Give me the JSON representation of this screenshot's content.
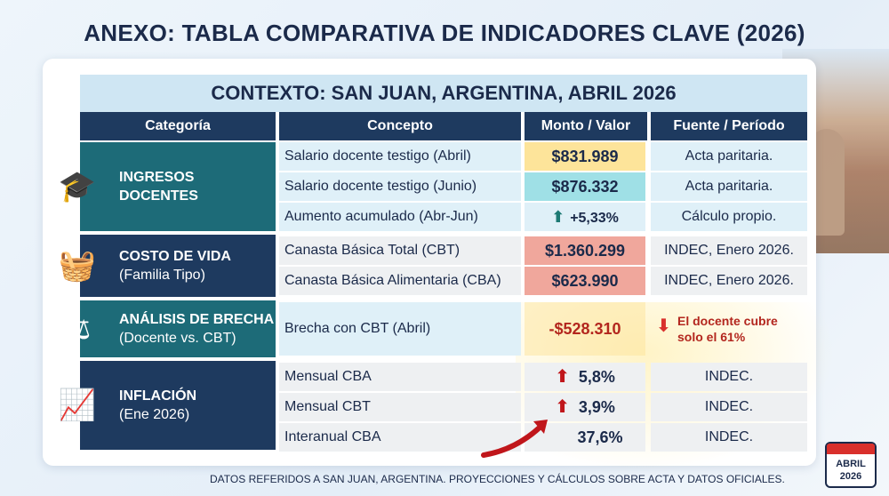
{
  "title": "ANEXO: TABLA COMPARATIVA DE INDICADORES CLAVE (2026)",
  "context": "CONTEXTO: SAN JUAN, ARGENTINA, ABRIL 2026",
  "headers": {
    "categoria": "Categoría",
    "concepto": "Concepto",
    "monto": "Monto / Valor",
    "fuente": "Fuente / Período"
  },
  "groups": {
    "ingresos": {
      "title1": "INGRESOS",
      "title2": "DOCENTES",
      "icon": "graduate-icon",
      "color": "#1d6b78"
    },
    "costo": {
      "title": "COSTO DE VIDA",
      "subtitle": "(Familia Tipo)",
      "icon": "basket-icon",
      "color": "#1e3a5f"
    },
    "brecha": {
      "title": "ANÁLISIS DE BRECHA",
      "subtitle": "(Docente vs. CBT)",
      "icon": "balance-icon",
      "color": "#1d6b78"
    },
    "inflacion": {
      "title": "INFLACIÓN",
      "subtitle": "(Ene 2026)",
      "icon": "chart-growth-icon",
      "color": "#1e3a5f"
    }
  },
  "rows": {
    "r1": {
      "concepto": "Salario docente testigo (Abril)",
      "monto": "$831.989",
      "fuente": "Acta paritaria.",
      "bg": "#fde49a"
    },
    "r2": {
      "concepto": "Salario docente testigo (Junio)",
      "monto": "$876.332",
      "fuente": "Acta paritaria.",
      "bg": "#9fe0e6"
    },
    "r3": {
      "concepto": "Aumento acumulado (Abr-Jun)",
      "monto": "+5,33%",
      "fuente": "Cálculo propio."
    },
    "r4": {
      "concepto": "Canasta Básica Total (CBT)",
      "monto": "$1.360.299",
      "fuente": "INDEC, Enero 2026.",
      "bg": "#f0a79c"
    },
    "r5": {
      "concepto": "Canasta Básica Alimentaria (CBA)",
      "monto": "$623.990",
      "fuente": "INDEC, Enero 2026.",
      "bg": "#f0a79c"
    },
    "r6": {
      "concepto": "Brecha con CBT (Abril)",
      "monto": "-$528.310",
      "fuente1": "El docente cubre",
      "fuente2": "solo el ",
      "fuente_pct": "61%"
    },
    "r7": {
      "concepto": "Mensual CBA",
      "monto": "5,8%",
      "fuente": "INDEC."
    },
    "r8": {
      "concepto": "Mensual CBT",
      "monto": "3,9%",
      "fuente": "INDEC."
    },
    "r9": {
      "concepto": "Interanual CBA",
      "monto": "37,6%",
      "fuente": "INDEC."
    }
  },
  "footer": "DATOS REFERIDOS A SAN JUAN, ARGENTINA. PROYECCIONES Y CÁLCULOS SOBRE ACTA Y DATOS OFICIALES.",
  "calendar": {
    "month": "ABRIL",
    "year": "2026"
  }
}
